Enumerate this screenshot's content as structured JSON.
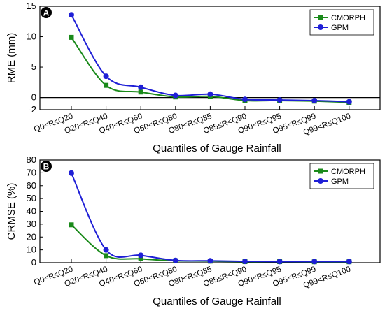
{
  "chart_data": [
    {
      "type": "line",
      "panel_label": "A",
      "ylabel": "RME (mm)",
      "xlabel": "Quantiles of Gauge Rainfall",
      "categories": [
        "Q0<R≤Q20",
        "Q20<R≤Q40",
        "Q40<R≤Q60",
        "Q60<R≤Q80",
        "Q80<R≤Q85",
        "Q85≤R<Q90",
        "Q90<R≤Q95",
        "Q95<R≤Q99",
        "Q99<R≤Q100"
      ],
      "ylim": [
        -2,
        15
      ],
      "yticks": [
        -2,
        0,
        5,
        10,
        15
      ],
      "zero_line": true,
      "legend_position": "top-right",
      "series": [
        {
          "name": "CMORPH",
          "color": "#1a8a1a",
          "marker": "square",
          "values": [
            9.9,
            2.0,
            0.9,
            0.1,
            0.2,
            -0.5,
            -0.5,
            -0.6,
            -0.8
          ]
        },
        {
          "name": "GPM",
          "color": "#1f1fd6",
          "marker": "circle",
          "values": [
            13.6,
            3.5,
            1.7,
            0.35,
            0.55,
            -0.3,
            -0.4,
            -0.5,
            -0.7
          ]
        }
      ]
    },
    {
      "type": "line",
      "panel_label": "B",
      "ylabel": "CRMSE (%)",
      "xlabel": "Quantiles of Gauge Rainfall",
      "categories": [
        "Q0<R≤Q20",
        "Q20<R≤Q40",
        "Q40<R≤Q60",
        "Q60<R≤Q80",
        "Q80<R≤Q85",
        "Q85≤R<Q90",
        "Q90<R≤Q95",
        "Q95<R≤Q99",
        "Q99<R≤Q100"
      ],
      "ylim": [
        0,
        80
      ],
      "yticks": [
        0,
        10,
        20,
        30,
        40,
        50,
        60,
        70,
        80
      ],
      "zero_line": false,
      "legend_position": "top-right",
      "series": [
        {
          "name": "CMORPH",
          "color": "#1a8a1a",
          "marker": "square",
          "values": [
            29.5,
            5.5,
            3.0,
            1.5,
            1.2,
            0.8,
            0.8,
            0.7,
            0.7
          ]
        },
        {
          "name": "GPM",
          "color": "#1f1fd6",
          "marker": "circle",
          "values": [
            69.8,
            10.0,
            5.8,
            1.8,
            1.5,
            1.0,
            0.9,
            0.9,
            0.9
          ]
        }
      ]
    }
  ]
}
